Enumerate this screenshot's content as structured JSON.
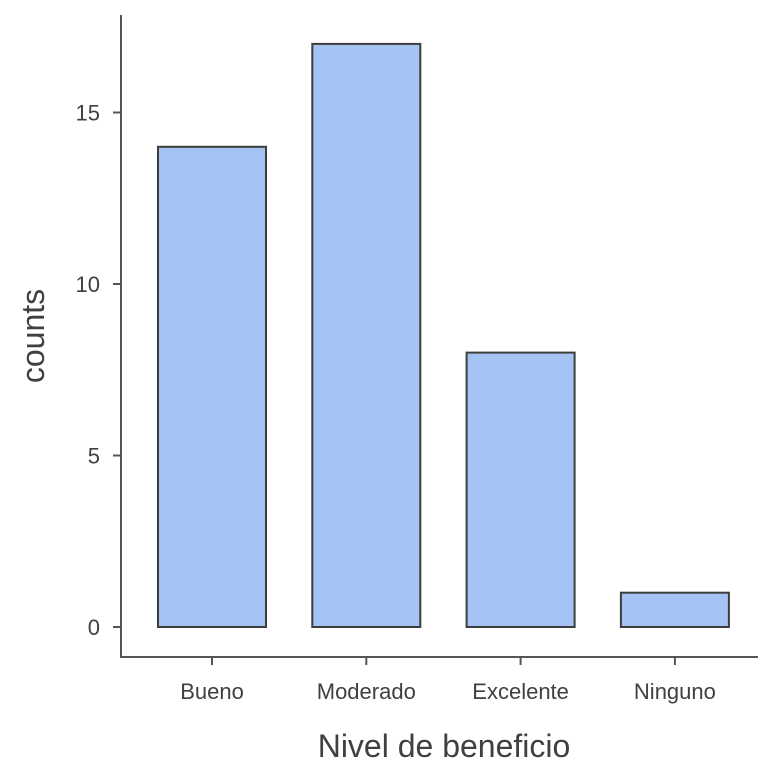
{
  "chart_data": {
    "type": "bar",
    "categories": [
      "Bueno",
      "Moderado",
      "Excelente",
      "Ninguno"
    ],
    "values": [
      14,
      17,
      8,
      1
    ],
    "title": "",
    "xlabel": "Nivel de beneficio",
    "ylabel": "counts",
    "ylim": [
      0,
      17.85
    ],
    "yticks": [
      0,
      5,
      10,
      15
    ],
    "grid": false,
    "bar_color": "#a4c2f2",
    "bar_edge_color": "#3d3d3d",
    "axis_color": "#555555",
    "text_color": "#404040"
  }
}
